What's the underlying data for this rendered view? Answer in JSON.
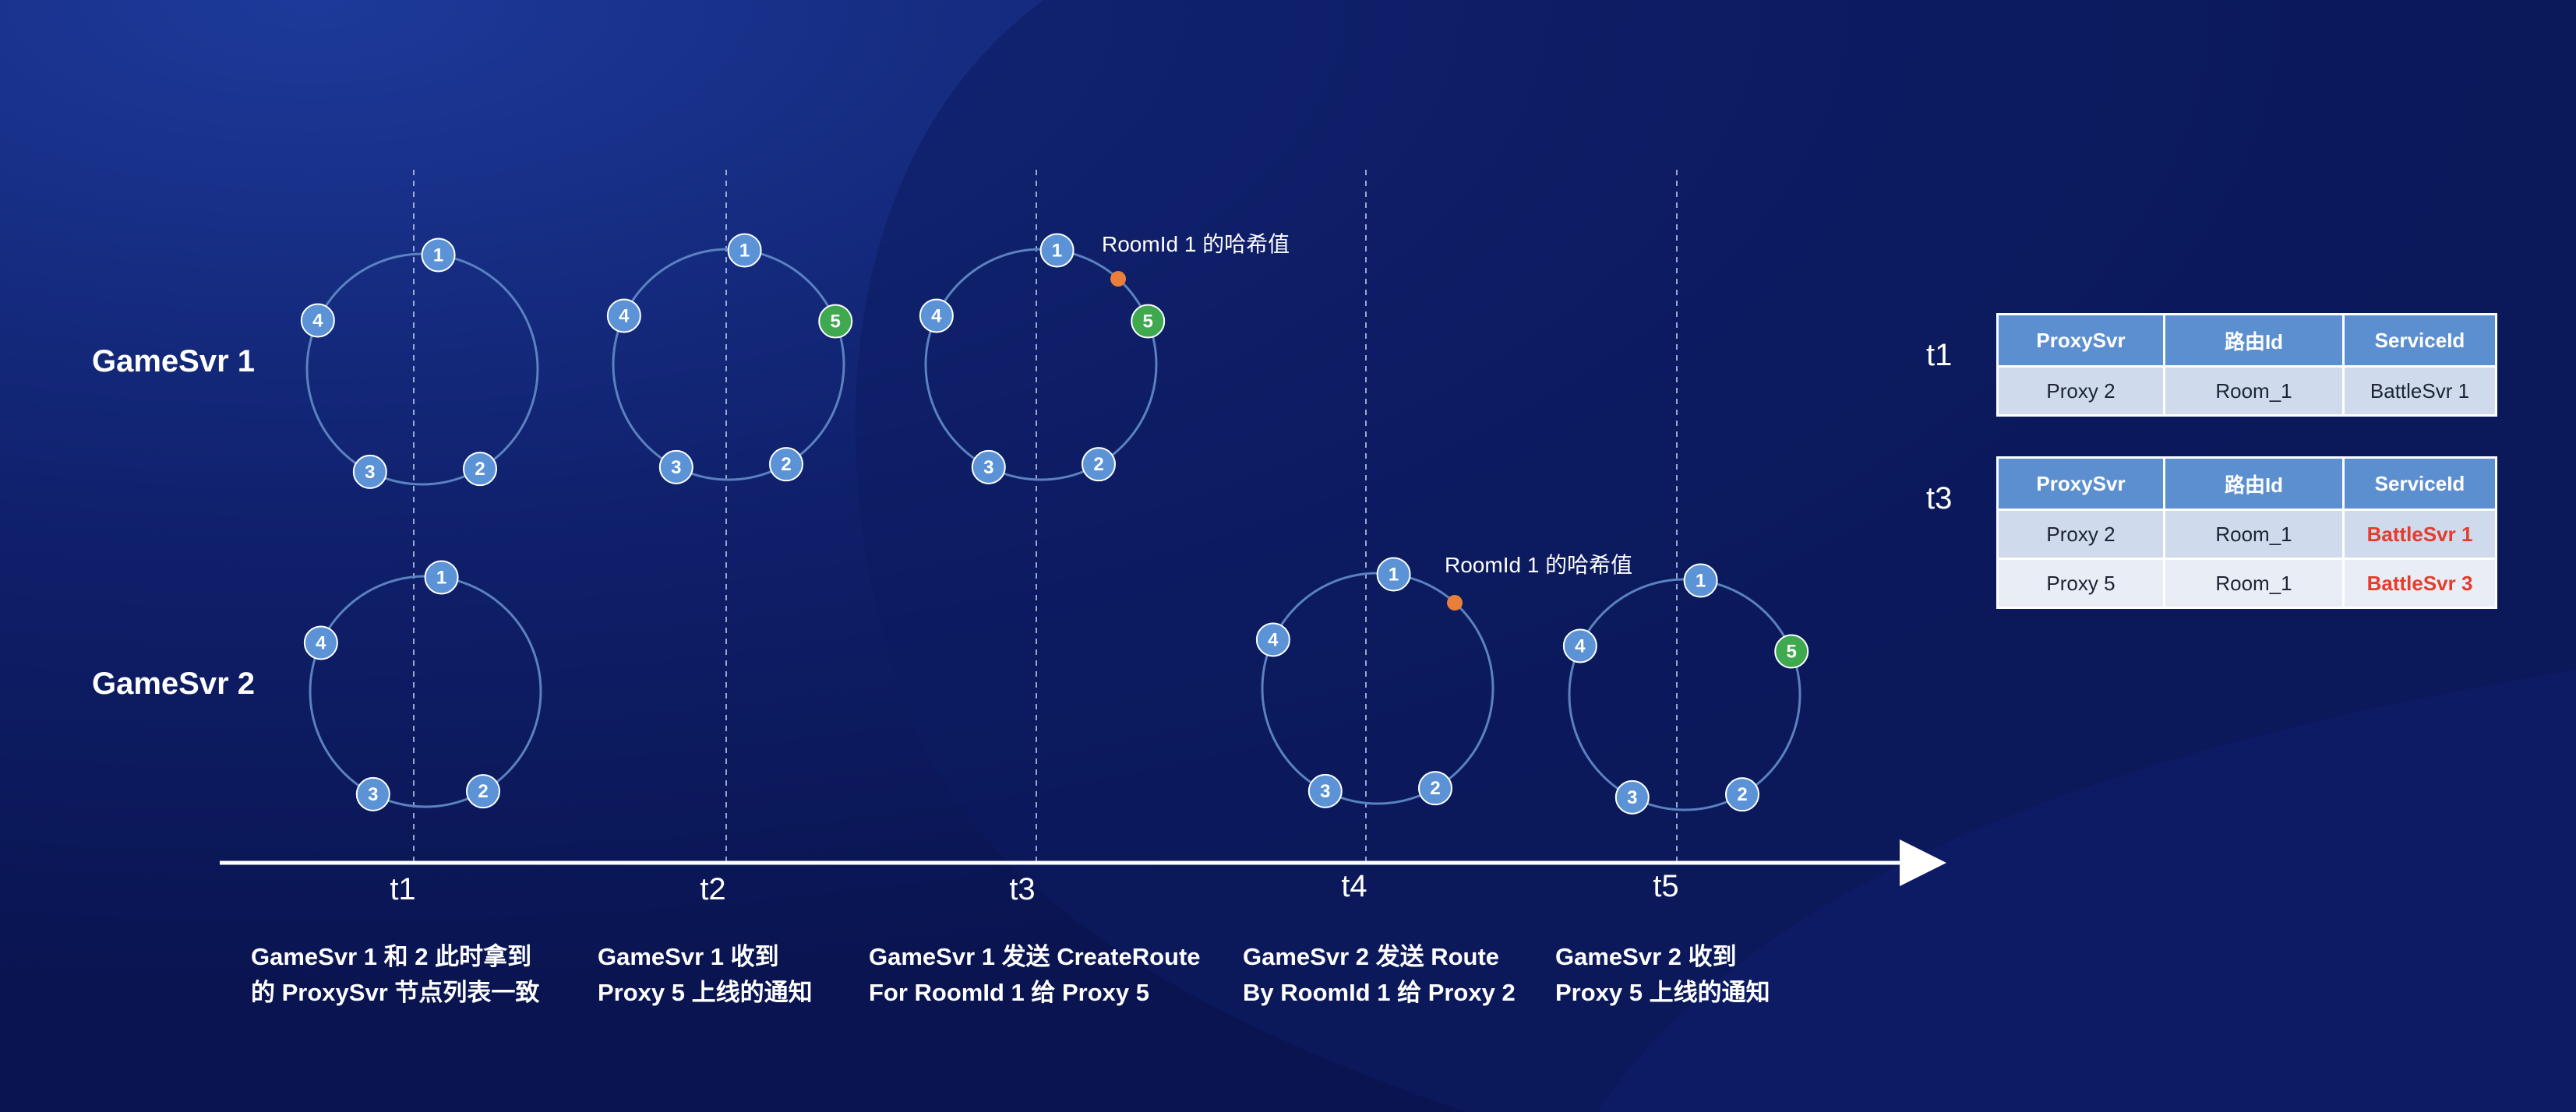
{
  "colors": {
    "node": "#5b93d6",
    "node_new": "#3fa950",
    "hash_point": "#e8803c",
    "ring": "#5a82c0",
    "axis": "#ffffff",
    "highlight": "#e53c2b"
  },
  "rows": [
    {
      "label": "GameSvr 1"
    },
    {
      "label": "GameSvr 2"
    }
  ],
  "timeline": {
    "labels": [
      "t1",
      "t2",
      "t3",
      "t4",
      "t5"
    ],
    "captions": [
      [
        "GameSvr 1 和 2 此时拿到",
        "的 ProxySvr 节点列表一致"
      ],
      [
        "GameSvr 1 收到",
        "Proxy 5 上线的通知"
      ],
      [
        "GameSvr 1 发送 CreateRoute",
        "For RoomId 1 给 Proxy 5"
      ],
      [
        "GameSvr 2 发送 Route",
        "By RoomId 1 给 Proxy 2"
      ],
      [
        "GameSvr 2 收到",
        "Proxy 5 上线的通知"
      ]
    ]
  },
  "rings": [
    {
      "row": "GameSvr 1",
      "time": "t1",
      "nodes": [
        "1",
        "2",
        "3",
        "4"
      ],
      "new_nodes": []
    },
    {
      "row": "GameSvr 1",
      "time": "t2",
      "nodes": [
        "1",
        "5",
        "2",
        "3",
        "4"
      ],
      "new_nodes": [
        "5"
      ]
    },
    {
      "row": "GameSvr 1",
      "time": "t3",
      "nodes": [
        "1",
        "5",
        "2",
        "3",
        "4"
      ],
      "new_nodes": [
        "5"
      ],
      "hash_note": "RoomId 1 的哈希值"
    },
    {
      "row": "GameSvr 2",
      "time": "t1",
      "nodes": [
        "1",
        "2",
        "3",
        "4"
      ],
      "new_nodes": []
    },
    {
      "row": "GameSvr 2",
      "time": "t4",
      "nodes": [
        "1",
        "2",
        "3",
        "4"
      ],
      "new_nodes": [],
      "hash_note": "RoomId 1 的哈希值"
    },
    {
      "row": "GameSvr 2",
      "time": "t5",
      "nodes": [
        "1",
        "5",
        "2",
        "3",
        "4"
      ],
      "new_nodes": [
        "5"
      ]
    }
  ],
  "route_tables": [
    {
      "time": "t1",
      "headers": [
        "ProxySvr",
        "路由Id",
        "ServiceId"
      ],
      "rows": [
        {
          "proxy": "Proxy 2",
          "route": "Room_1",
          "service": "BattleSvr 1",
          "highlight": false
        }
      ]
    },
    {
      "time": "t3",
      "headers": [
        "ProxySvr",
        "路由Id",
        "ServiceId"
      ],
      "rows": [
        {
          "proxy": "Proxy 2",
          "route": "Room_1",
          "service": "BattleSvr 1",
          "highlight": true
        },
        {
          "proxy": "Proxy 5",
          "route": "Room_1",
          "service": "BattleSvr 3",
          "highlight": true
        }
      ]
    }
  ]
}
